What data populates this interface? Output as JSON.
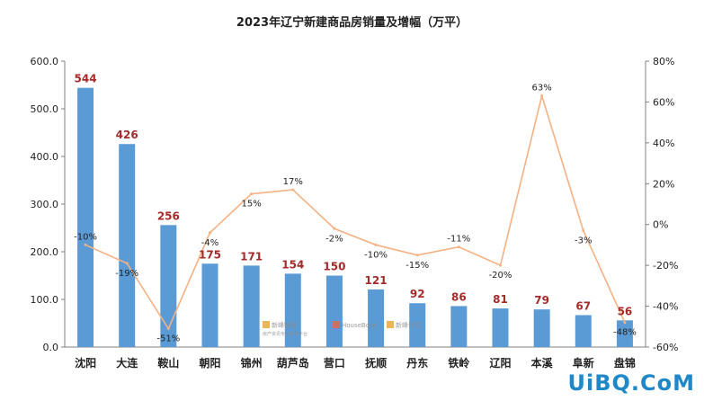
{
  "chart_data": {
    "type": "bar",
    "title": "2023年辽宁新建商品房销量及增幅（万平）",
    "categories": [
      "沈阳",
      "大连",
      "鞍山",
      "朝阳",
      "锦州",
      "葫芦岛",
      "营口",
      "抚顺",
      "丹东",
      "铁岭",
      "辽阳",
      "本溪",
      "阜新",
      "盘锦"
    ],
    "series": [
      {
        "type": "bar",
        "values": [
          544,
          426,
          256,
          175,
          171,
          154,
          150,
          121,
          92,
          86,
          81,
          79,
          67,
          56
        ]
      },
      {
        "type": "line",
        "axis": "right",
        "values": [
          -10,
          -19,
          -51,
          -4,
          15,
          17,
          -2,
          -10,
          -15,
          -11,
          -20,
          63,
          -3,
          -48
        ]
      }
    ],
    "bar_labels": [
      "544",
      "426",
      "256",
      "175",
      "171",
      "154",
      "150",
      "121",
      "92",
      "86",
      "81",
      "79",
      "67",
      "56"
    ],
    "line_labels": [
      "-10%",
      "-19%",
      "-51%",
      "-4%",
      "15%",
      "17%",
      "-2%",
      "-10%",
      "-15%",
      "-11%",
      "-20%",
      "63%",
      "-3%",
      "-48%"
    ],
    "y_left": {
      "ylim": [
        0,
        600
      ],
      "ticks": [
        "0.0",
        "100.0",
        "200.0",
        "300.0",
        "400.0",
        "500.0",
        "600.0"
      ]
    },
    "y_right": {
      "ylim": [
        -60,
        80
      ],
      "ticks": [
        "-60%",
        "-40%",
        "-20%",
        "0%",
        "20%",
        "40%",
        "60%",
        "80%"
      ]
    },
    "grid": false,
    "legend": "none",
    "colors": {
      "bar": "#5b9bd5",
      "line": "#f4b183",
      "bar_label": "#a52a2a",
      "line_label": "#222222"
    }
  },
  "watermark": {
    "brand_1": "新峰微网",
    "brand_1_sub": "房产资讯专业服务平台",
    "brand_2": "HouseBook",
    "brand_3": "新峰评估",
    "site_logo": "UiBQ.CoM"
  }
}
